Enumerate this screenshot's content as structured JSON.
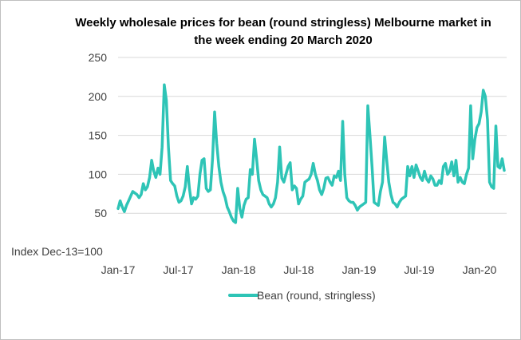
{
  "chart_data": {
    "type": "line",
    "title_line1": "Weekly wholesale prices for bean (round stringless) Melbourne market in",
    "title_line2": "the week ending 20 March 2020",
    "ylabel": "Index Dec-13=100",
    "ylim": [
      0,
      250
    ],
    "yticks": [
      50,
      100,
      150,
      200,
      250
    ],
    "xticks": [
      "Jan-17",
      "Jul-17",
      "Jan-18",
      "Jul-18",
      "Jan-19",
      "Jul-19",
      "Jan-20"
    ],
    "grid": "horizontal",
    "legend_position": "bottom",
    "color": "#2ec4b6",
    "series": [
      {
        "name": "Bean (round, stringless)",
        "values": [
          56,
          66,
          58,
          52,
          60,
          66,
          72,
          78,
          76,
          74,
          70,
          74,
          88,
          80,
          84,
          96,
          118,
          104,
          96,
          108,
          100,
          135,
          215,
          195,
          135,
          92,
          88,
          85,
          72,
          64,
          66,
          72,
          84,
          110,
          82,
          62,
          70,
          68,
          72,
          100,
          118,
          120,
          82,
          78,
          80,
          120,
          180,
          140,
          110,
          90,
          78,
          70,
          58,
          52,
          45,
          40,
          38,
          82,
          56,
          45,
          60,
          68,
          70,
          106,
          100,
          145,
          120,
          92,
          80,
          74,
          72,
          70,
          62,
          58,
          62,
          70,
          90,
          135,
          95,
          90,
          100,
          110,
          115,
          80,
          85,
          82,
          62,
          68,
          72,
          90,
          92,
          94,
          100,
          114,
          100,
          92,
          80,
          74,
          82,
          95,
          96,
          90,
          86,
          98,
          96,
          104,
          92,
          168,
          100,
          70,
          66,
          64,
          64,
          60,
          54,
          58,
          60,
          62,
          64,
          188,
          150,
          110,
          64,
          62,
          60,
          78,
          90,
          148,
          118,
          90,
          74,
          64,
          62,
          58,
          64,
          68,
          70,
          72,
          110,
          98,
          110,
          96,
          112,
          104,
          96,
          92,
          104,
          94,
          90,
          98,
          94,
          86,
          86,
          92,
          88,
          110,
          114,
          100,
          104,
          116,
          98,
          118,
          90,
          96,
          90,
          88,
          100,
          108,
          188,
          120,
          145,
          160,
          165,
          180,
          208,
          200,
          170,
          90,
          84,
          82,
          162,
          110,
          108,
          120,
          105
        ]
      }
    ]
  }
}
